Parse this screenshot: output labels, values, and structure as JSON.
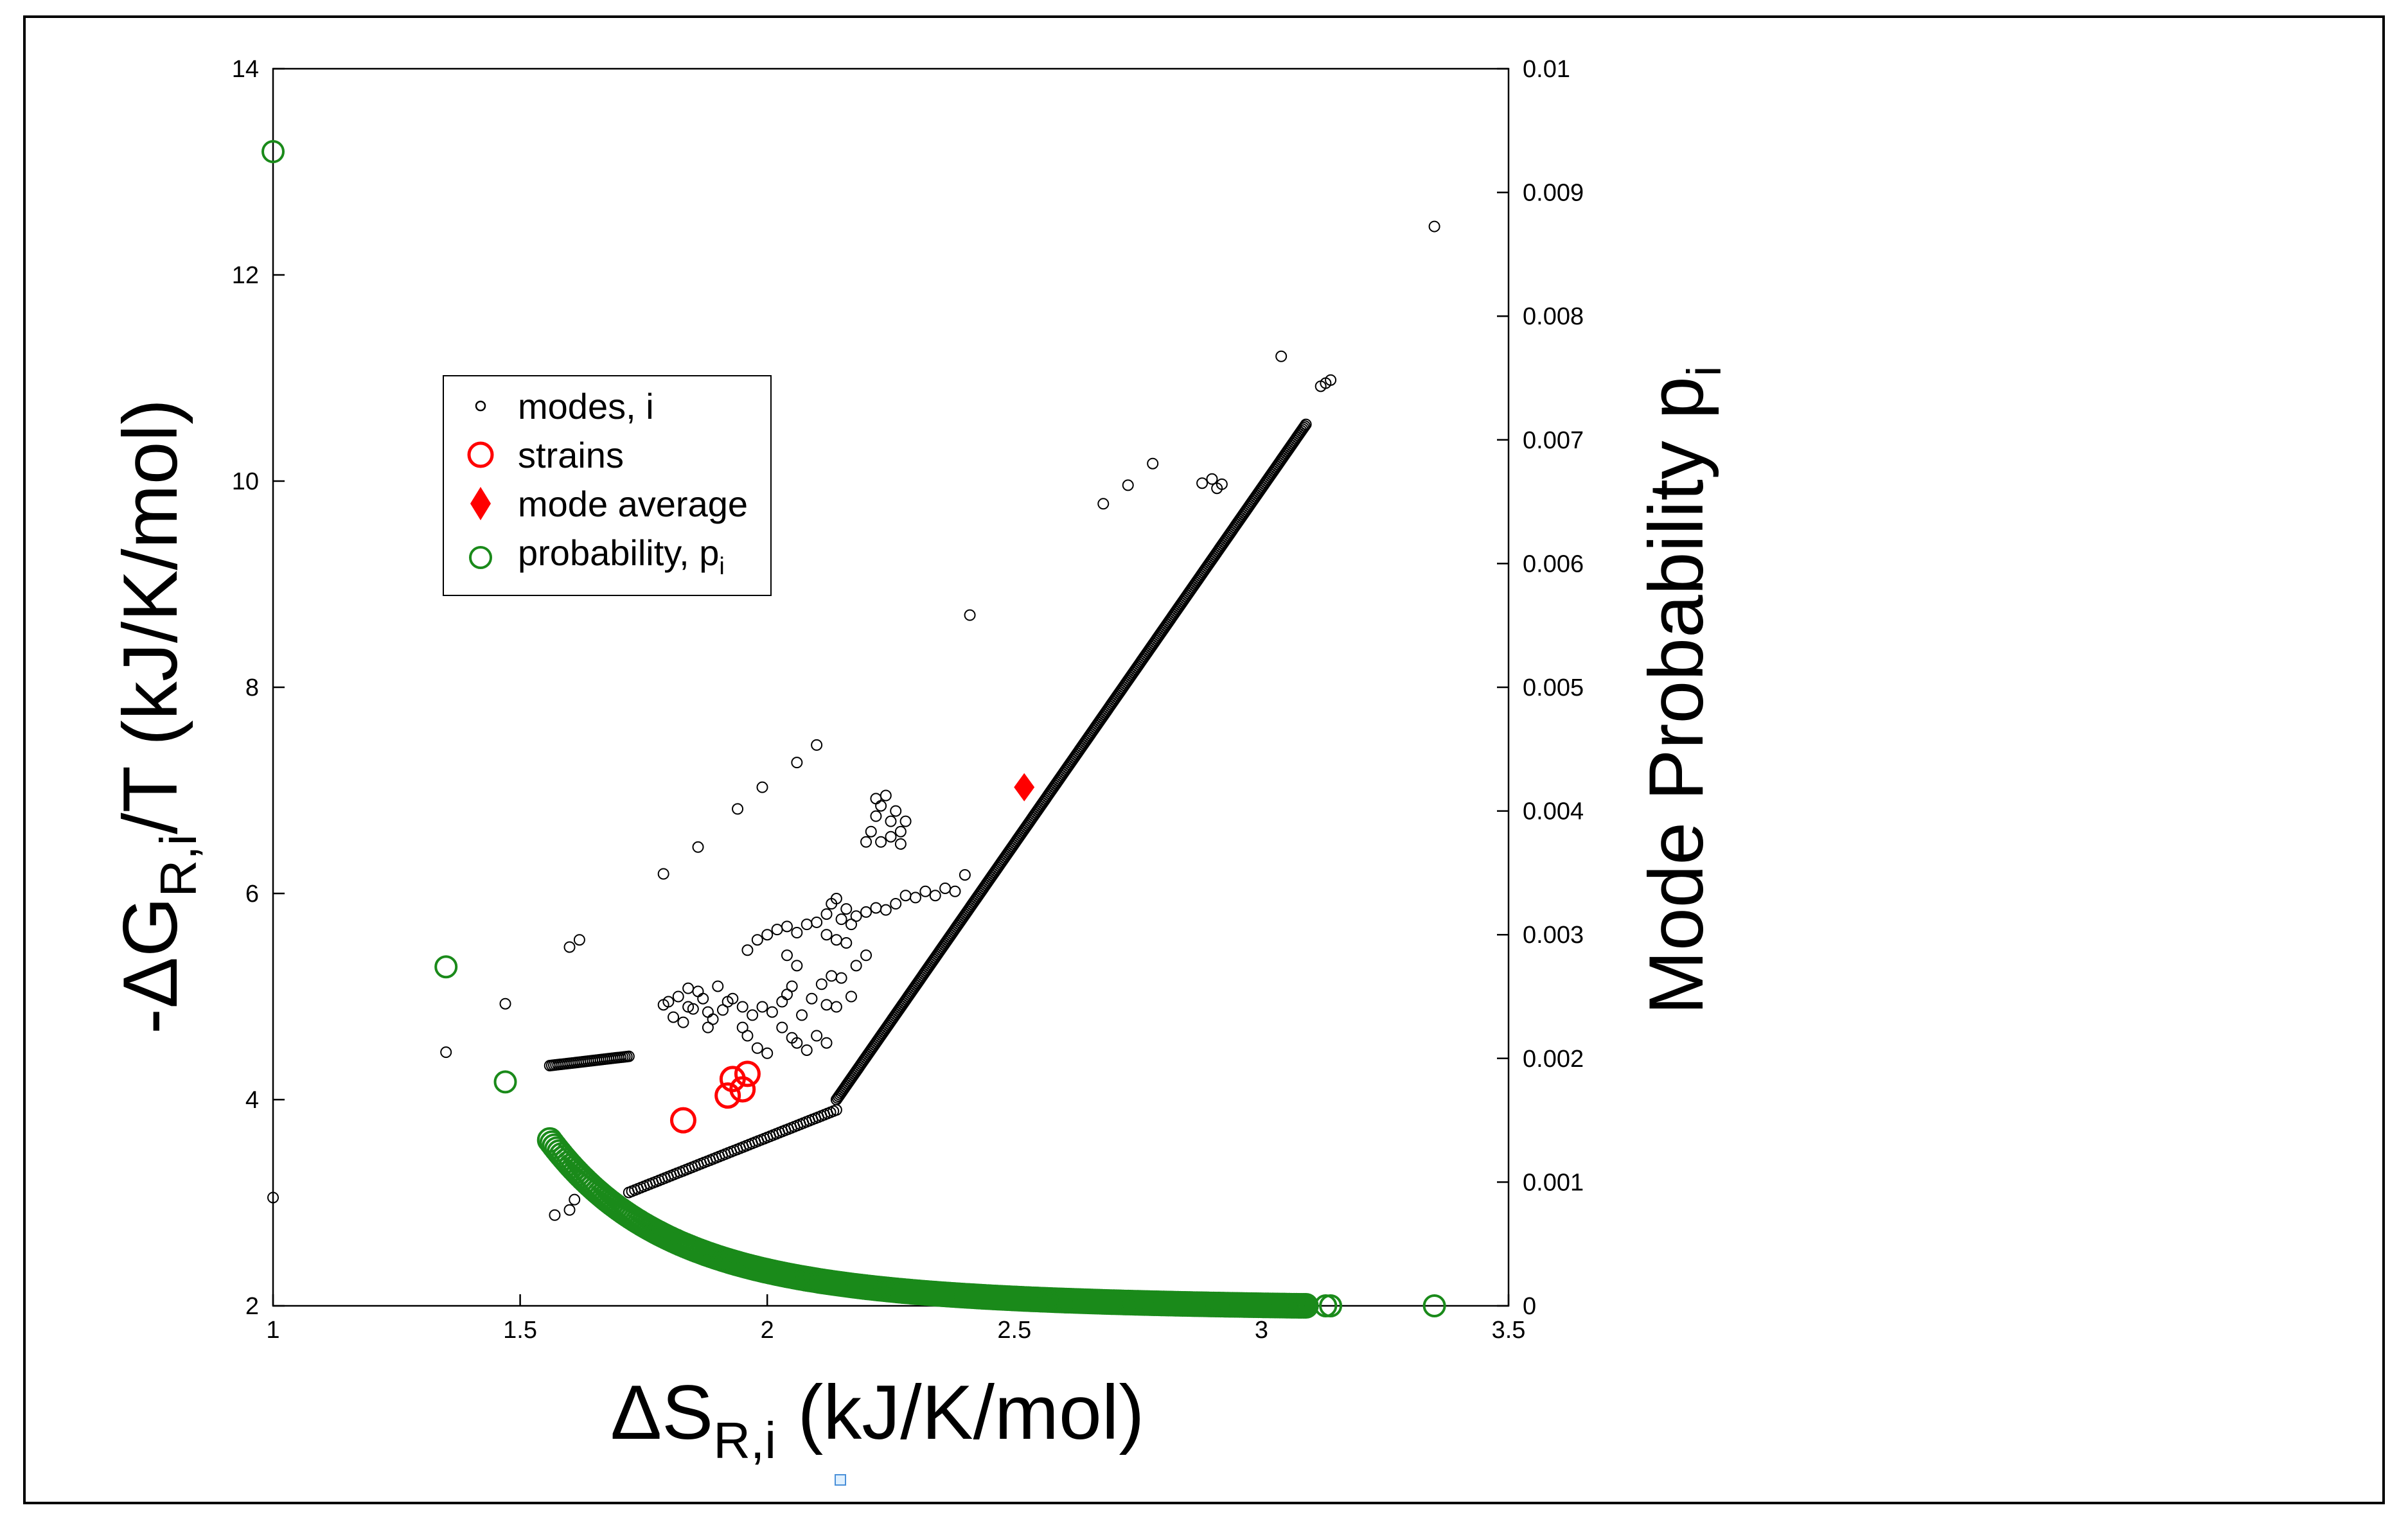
{
  "chart_data": {
    "type": "scatter",
    "title": "",
    "xlabel": "ΔS",
    "xlabel_sub": "R,i",
    "xlabel_unit": " (kJ/K/mol)",
    "ylabel_prefix": "-ΔG",
    "ylabel_sub": "R,i",
    "ylabel_suffix": "/T (kJ/K/mol)",
    "ylabel_right": "Mode Probability p",
    "ylabel_right_sub": "i",
    "xlim": [
      1,
      3.5
    ],
    "ylim_left": [
      2,
      14
    ],
    "ylim_right": [
      0,
      0.01
    ],
    "xticks": [
      "1",
      "1.5",
      "2",
      "2.5",
      "3",
      "3.5"
    ],
    "yticks_left": [
      "2",
      "4",
      "6",
      "8",
      "10",
      "12",
      "14"
    ],
    "yticks_right": [
      "0",
      "0.001",
      "0.002",
      "0.003",
      "0.004",
      "0.005",
      "0.006",
      "0.007",
      "0.008",
      "0.009",
      "0.01"
    ],
    "legend_position": "upper-left-inside",
    "legend": [
      {
        "label": "modes, i",
        "marker": "small-circle",
        "color": "#000000"
      },
      {
        "label": "strains",
        "marker": "circle",
        "color": "#ff0000"
      },
      {
        "label": "mode average",
        "marker": "diamond",
        "color": "#ff0000"
      },
      {
        "label": "probability, p",
        "label_sub": "i",
        "marker": "circle",
        "color": "#1a8a1a"
      }
    ],
    "series": [
      {
        "name": "modes, i",
        "axis": "left",
        "color": "#000000",
        "marker": "small-circle",
        "points": [
          [
            1.0,
            3.05
          ],
          [
            1.35,
            4.46
          ],
          [
            1.47,
            4.93
          ],
          [
            1.57,
            2.88
          ],
          [
            1.6,
            2.93
          ],
          [
            1.61,
            3.03
          ],
          [
            1.6,
            5.48
          ],
          [
            1.62,
            5.55
          ],
          [
            1.79,
            6.19
          ],
          [
            1.86,
            6.45
          ],
          [
            1.94,
            6.82
          ],
          [
            1.99,
            7.03
          ],
          [
            2.06,
            7.27
          ],
          [
            2.1,
            7.44
          ],
          [
            2.41,
            8.7
          ],
          [
            2.68,
            9.78
          ],
          [
            2.73,
            9.96
          ],
          [
            2.78,
            10.17
          ],
          [
            3.04,
            11.21
          ],
          [
            3.35,
            12.47
          ],
          [
            3.12,
            10.92
          ],
          [
            3.13,
            10.95
          ],
          [
            3.14,
            10.98
          ],
          [
            2.88,
            9.98
          ],
          [
            2.9,
            10.02
          ],
          [
            2.91,
            9.93
          ],
          [
            2.92,
            9.97
          ],
          [
            2.2,
            6.5
          ],
          [
            2.21,
            6.6
          ],
          [
            2.22,
            6.75
          ],
          [
            2.23,
            6.85
          ],
          [
            2.24,
            6.95
          ],
          [
            2.25,
            6.7
          ],
          [
            2.26,
            6.8
          ],
          [
            2.27,
            6.6
          ],
          [
            2.25,
            6.55
          ],
          [
            2.28,
            6.7
          ],
          [
            2.22,
            6.92
          ],
          [
            2.23,
            6.5
          ],
          [
            2.27,
            6.48
          ],
          [
            2.4,
            6.18
          ],
          [
            1.8,
            4.95
          ],
          [
            1.82,
            5.0
          ],
          [
            1.84,
            4.9
          ],
          [
            1.86,
            5.05
          ],
          [
            1.88,
            4.85
          ],
          [
            1.9,
            5.1
          ],
          [
            1.92,
            4.95
          ],
          [
            1.81,
            4.8
          ],
          [
            1.83,
            4.75
          ],
          [
            1.85,
            4.88
          ],
          [
            1.87,
            4.98
          ],
          [
            1.89,
            4.78
          ],
          [
            1.91,
            4.87
          ],
          [
            1.93,
            4.98
          ],
          [
            1.95,
            4.9
          ],
          [
            1.97,
            4.82
          ],
          [
            1.79,
            4.92
          ],
          [
            1.84,
            5.08
          ],
          [
            1.88,
            4.7
          ],
          [
            1.96,
            5.45
          ],
          [
            1.98,
            5.55
          ],
          [
            2.0,
            5.6
          ],
          [
            2.02,
            5.65
          ],
          [
            2.04,
            5.68
          ],
          [
            2.06,
            5.62
          ],
          [
            2.08,
            5.7
          ],
          [
            2.1,
            5.72
          ],
          [
            2.12,
            5.8
          ],
          [
            2.13,
            5.9
          ],
          [
            2.14,
            5.95
          ],
          [
            2.15,
            5.75
          ],
          [
            2.16,
            5.85
          ],
          [
            2.17,
            5.7
          ],
          [
            2.18,
            5.78
          ],
          [
            2.2,
            5.82
          ],
          [
            2.22,
            5.86
          ],
          [
            2.24,
            5.84
          ],
          [
            2.26,
            5.9
          ],
          [
            2.28,
            5.98
          ],
          [
            2.3,
            5.96
          ],
          [
            2.32,
            6.02
          ],
          [
            2.34,
            5.98
          ],
          [
            2.36,
            6.05
          ],
          [
            2.38,
            6.02
          ],
          [
            2.12,
            5.6
          ],
          [
            2.14,
            5.55
          ],
          [
            2.16,
            5.52
          ],
          [
            2.18,
            5.3
          ],
          [
            2.2,
            5.4
          ],
          [
            1.99,
            4.9
          ],
          [
            2.01,
            4.85
          ],
          [
            2.03,
            4.95
          ],
          [
            2.05,
            5.1
          ],
          [
            2.07,
            4.82
          ],
          [
            2.09,
            4.98
          ],
          [
            2.11,
            5.12
          ],
          [
            2.13,
            5.2
          ],
          [
            2.15,
            5.18
          ],
          [
            2.17,
            5.0
          ],
          [
            2.04,
            5.02
          ],
          [
            2.12,
            4.92
          ],
          [
            2.14,
            4.9
          ],
          [
            1.98,
            4.5
          ],
          [
            2.0,
            4.45
          ],
          [
            2.05,
            4.6
          ],
          [
            2.06,
            4.55
          ],
          [
            2.08,
            4.48
          ],
          [
            2.1,
            4.62
          ],
          [
            2.12,
            4.55
          ],
          [
            1.96,
            4.62
          ],
          [
            1.95,
            4.7
          ],
          [
            2.03,
            4.7
          ],
          [
            2.04,
            5.4
          ],
          [
            2.06,
            5.3
          ]
        ],
        "dense_segments": [
          {
            "x": [
              1.56,
              1.72
            ],
            "y": [
              4.33,
              4.42
            ],
            "count": 40
          },
          {
            "x": [
              1.72,
              2.14
            ],
            "y": [
              3.1,
              3.9
            ],
            "count": 70
          },
          {
            "x": [
              2.14,
              3.09
            ],
            "y": [
              4.0,
              10.55
            ],
            "count": 420
          }
        ]
      },
      {
        "name": "strains",
        "axis": "left",
        "color": "#ff0000",
        "marker": "circle",
        "points": [
          [
            1.83,
            3.8
          ],
          [
            1.92,
            4.04
          ],
          [
            1.93,
            4.2
          ],
          [
            1.95,
            4.1
          ],
          [
            1.96,
            4.25
          ]
        ]
      },
      {
        "name": "mode average",
        "axis": "left",
        "color": "#ff0000",
        "marker": "diamond",
        "points": [
          [
            2.52,
            7.03
          ]
        ]
      },
      {
        "name": "probability, p_i",
        "axis": "right",
        "color": "#1a8a1a",
        "marker": "circle",
        "points": [
          [
            1.0,
            0.00933
          ],
          [
            1.35,
            0.00274
          ],
          [
            1.47,
            0.00181
          ],
          [
            3.13,
            0.0
          ],
          [
            3.14,
            0.0
          ],
          [
            3.35,
            0.0
          ]
        ],
        "curve": {
          "x_from": 1.56,
          "x_to": 3.09,
          "p_at_start": 0.00134,
          "count": 320
        }
      }
    ]
  },
  "footer_glyph": "□"
}
